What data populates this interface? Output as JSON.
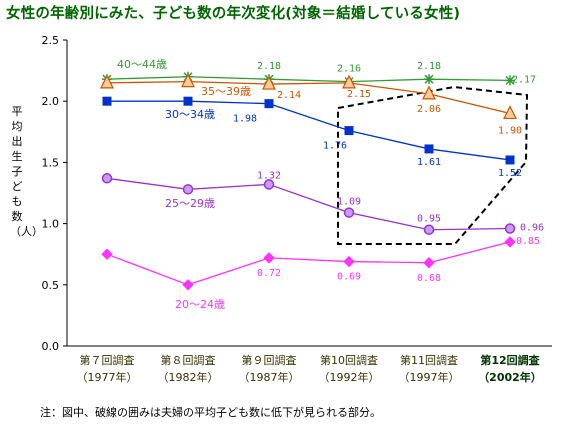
{
  "title": "女性の年齢別にみた、子ども数の年次変化(対象＝結婚している女性)",
  "note": "注：図中、破線の囲みは夫婦の平均子ども数に低下が見られる部分。",
  "chart_data": {
    "type": "line",
    "ylabel": "平均出生子ども数（人）",
    "ylim": [
      0,
      2.5
    ],
    "yticks": [
      "0.0",
      "0.5",
      "1.0",
      "1.5",
      "2.0",
      "2.5"
    ],
    "categories": [
      {
        "line1": "第７回調査",
        "line2": "（1977年）",
        "bold": false
      },
      {
        "line1": "第８回調査",
        "line2": "（1982年）",
        "bold": false
      },
      {
        "line1": "第９回調査",
        "line2": "（1987年）",
        "bold": false
      },
      {
        "line1": "第10回調査",
        "line2": "（1992年）",
        "bold": false
      },
      {
        "line1": "第11回調査",
        "line2": "（1997年）",
        "bold": false
      },
      {
        "line1": "第12回調査",
        "line2": "（2002年）",
        "bold": true
      }
    ],
    "series": [
      {
        "name": "40～44歳",
        "color": "#339933",
        "marker": "star",
        "values": [
          2.18,
          2.2,
          2.18,
          2.16,
          2.18,
          2.17
        ],
        "labels": [
          "",
          "",
          "2.18",
          "2.16",
          "2.18",
          "2.17"
        ]
      },
      {
        "name": "35～39歳",
        "color": "#cc5500",
        "marker": "triangle",
        "values": [
          2.15,
          2.16,
          2.14,
          2.15,
          2.06,
          1.9
        ],
        "labels": [
          "",
          "",
          "2.14",
          "2.15",
          "2.06",
          "1.90"
        ]
      },
      {
        "name": "30～34歳",
        "color": "#0033cc",
        "marker": "square",
        "values": [
          2.0,
          2.0,
          1.98,
          1.76,
          1.61,
          1.52
        ],
        "labels": [
          "",
          "",
          "1.98",
          "1.76",
          "1.61",
          "1.52"
        ]
      },
      {
        "name": "25～29歳",
        "color": "#9933cc",
        "marker": "circle",
        "values": [
          1.37,
          1.28,
          1.32,
          1.09,
          0.95,
          0.96
        ],
        "labels": [
          "",
          "",
          "1.32",
          "1.09",
          "0.95",
          "0.96"
        ]
      },
      {
        "name": "20～24歳",
        "color": "#ff33ff",
        "marker": "diamond",
        "values": [
          0.75,
          0.5,
          0.72,
          0.69,
          0.68,
          0.85
        ],
        "labels": [
          "",
          "",
          "0.72",
          "0.69",
          "0.68",
          "0.85"
        ]
      }
    ],
    "grid": true,
    "legend": "inline labels"
  }
}
